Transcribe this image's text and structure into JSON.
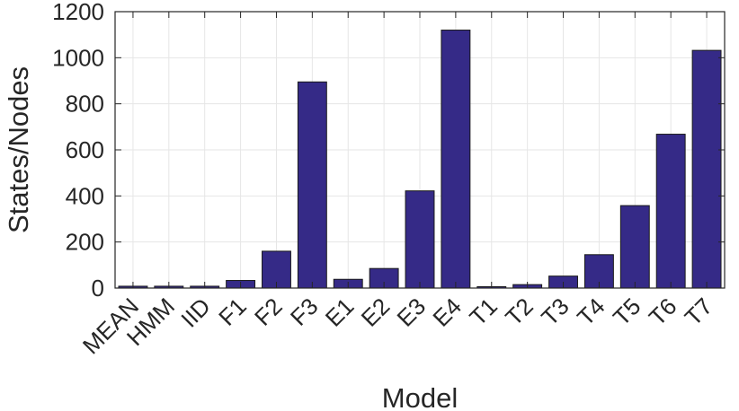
{
  "chart_data": {
    "type": "bar",
    "title": "",
    "xlabel": "Model",
    "ylabel": "States/Nodes",
    "categories": [
      "MEAN",
      "HMM",
      "IID",
      "F1",
      "F2",
      "F3",
      "E1",
      "E2",
      "E3",
      "E4",
      "T1",
      "T2",
      "T3",
      "T4",
      "T5",
      "T6",
      "T7"
    ],
    "values": [
      8,
      8,
      8,
      33,
      160,
      895,
      38,
      85,
      422,
      1120,
      6,
      15,
      52,
      145,
      358,
      668,
      1032
    ],
    "ylim": [
      0,
      1200
    ],
    "yticks": [
      0,
      200,
      400,
      600,
      800,
      1000,
      1200
    ],
    "grid": true,
    "bar_color": "#352a87"
  }
}
